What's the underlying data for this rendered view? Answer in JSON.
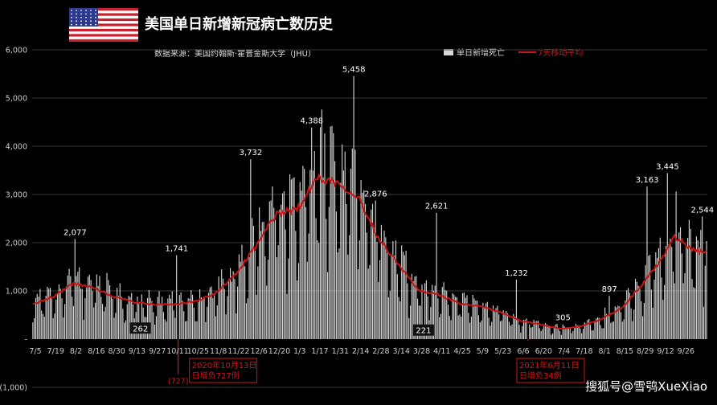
{
  "chart_data": {
    "type": "bar",
    "title": "美国单日新增新冠病亡数历史",
    "source": "数据来源：美国约翰斯·霍普金斯大学（JHU）",
    "watermark": "搜狐号@雪鸮XueXiao",
    "legend": {
      "position": "top-right",
      "bar_label": "单日新增死亡",
      "line_label": "7天移动平均"
    },
    "ylim": [
      -1000,
      6000
    ],
    "yticks": [
      {
        "value": 6000,
        "label": "6,000"
      },
      {
        "value": 5000,
        "label": "5,000"
      },
      {
        "value": 4000,
        "label": "4,000"
      },
      {
        "value": 3000,
        "label": "3,000"
      },
      {
        "value": 2000,
        "label": "2,000"
      },
      {
        "value": 1000,
        "label": "1,000"
      },
      {
        "value": 0,
        "label": "-"
      },
      {
        "value": -1000,
        "label": "(1,000)"
      }
    ],
    "x_start": "2020-07-05",
    "xticks": [
      {
        "day": 0,
        "label": "7/5"
      },
      {
        "day": 14,
        "label": "7/19"
      },
      {
        "day": 28,
        "label": "8/2"
      },
      {
        "day": 42,
        "label": "8/16"
      },
      {
        "day": 56,
        "label": "8/30"
      },
      {
        "day": 70,
        "label": "9/13"
      },
      {
        "day": 84,
        "label": "9/27"
      },
      {
        "day": 98,
        "label": "10/11"
      },
      {
        "day": 112,
        "label": "10/25"
      },
      {
        "day": 126,
        "label": "11/8"
      },
      {
        "day": 140,
        "label": "11/22"
      },
      {
        "day": 154,
        "label": "12/6"
      },
      {
        "day": 168,
        "label": "12/20"
      },
      {
        "day": 182,
        "label": "1/3"
      },
      {
        "day": 196,
        "label": "1/17"
      },
      {
        "day": 210,
        "label": "1/31"
      },
      {
        "day": 224,
        "label": "2/14"
      },
      {
        "day": 238,
        "label": "2/28"
      },
      {
        "day": 252,
        "label": "3/14"
      },
      {
        "day": 266,
        "label": "3/28"
      },
      {
        "day": 280,
        "label": "4/11"
      },
      {
        "day": 294,
        "label": "4/25"
      },
      {
        "day": 308,
        "label": "5/9"
      },
      {
        "day": 322,
        "label": "5/23"
      },
      {
        "day": 336,
        "label": "6/6"
      },
      {
        "day": 350,
        "label": "6/20"
      },
      {
        "day": 364,
        "label": "7/4"
      },
      {
        "day": 378,
        "label": "7/18"
      },
      {
        "day": 392,
        "label": "8/1"
      },
      {
        "day": 406,
        "label": "8/15"
      },
      {
        "day": 420,
        "label": "8/29"
      },
      {
        "day": 434,
        "label": "9/12"
      },
      {
        "day": 448,
        "label": "9/26"
      }
    ],
    "moving_avg_anchors": [
      [
        0,
        720
      ],
      [
        14,
        880
      ],
      [
        28,
        1150
      ],
      [
        42,
        1060
      ],
      [
        56,
        880
      ],
      [
        70,
        760
      ],
      [
        84,
        720
      ],
      [
        98,
        720
      ],
      [
        112,
        780
      ],
      [
        126,
        950
      ],
      [
        140,
        1350
      ],
      [
        154,
        1950
      ],
      [
        168,
        2600
      ],
      [
        182,
        2700
      ],
      [
        196,
        3350
      ],
      [
        210,
        3250
      ],
      [
        224,
        2950
      ],
      [
        238,
        2100
      ],
      [
        252,
        1550
      ],
      [
        266,
        1000
      ],
      [
        280,
        920
      ],
      [
        294,
        730
      ],
      [
        308,
        680
      ],
      [
        322,
        560
      ],
      [
        336,
        380
      ],
      [
        350,
        300
      ],
      [
        364,
        210
      ],
      [
        378,
        270
      ],
      [
        392,
        420
      ],
      [
        406,
        650
      ],
      [
        420,
        1150
      ],
      [
        434,
        1700
      ],
      [
        441,
        2150
      ],
      [
        448,
        2000
      ],
      [
        455,
        1850
      ],
      [
        464,
        1800
      ]
    ],
    "peak_labels": [
      {
        "day": 29,
        "value": 2077,
        "label": "2,077"
      },
      {
        "day": 99,
        "value": 1741,
        "label": "1,741"
      },
      {
        "day": 150,
        "value": 3732,
        "label": "3,732"
      },
      {
        "day": 192,
        "value": 4388,
        "label": "4,388"
      },
      {
        "day": 221,
        "value": 5458,
        "label": "5,458"
      },
      {
        "day": 236,
        "value": 2876,
        "label": "2,876"
      },
      {
        "day": 278,
        "value": 2621,
        "label": "2,621"
      },
      {
        "day": 333,
        "value": 1232,
        "label": "1,232"
      },
      {
        "day": 365,
        "value": 305,
        "label": "305"
      },
      {
        "day": 397,
        "value": 897,
        "label": "897"
      },
      {
        "day": 423,
        "value": 3163,
        "label": "3,163"
      },
      {
        "day": 437,
        "value": 3445,
        "label": "3,445"
      },
      {
        "day": 461,
        "value": 2544,
        "label": "2,544"
      }
    ],
    "low_labels": [
      {
        "day": 74,
        "value": 262,
        "label": "262"
      },
      {
        "day": 269,
        "value": 221,
        "label": "221"
      }
    ],
    "negative_events": [
      {
        "day": 100,
        "value": -727,
        "label": "(727)",
        "note_line1": "2020年10月13日",
        "note_line2": "日增负727例"
      },
      {
        "day": 341,
        "value": -34,
        "label": "",
        "note_line1": "2021年6月11日",
        "note_line2": "日增负34例"
      }
    ]
  }
}
